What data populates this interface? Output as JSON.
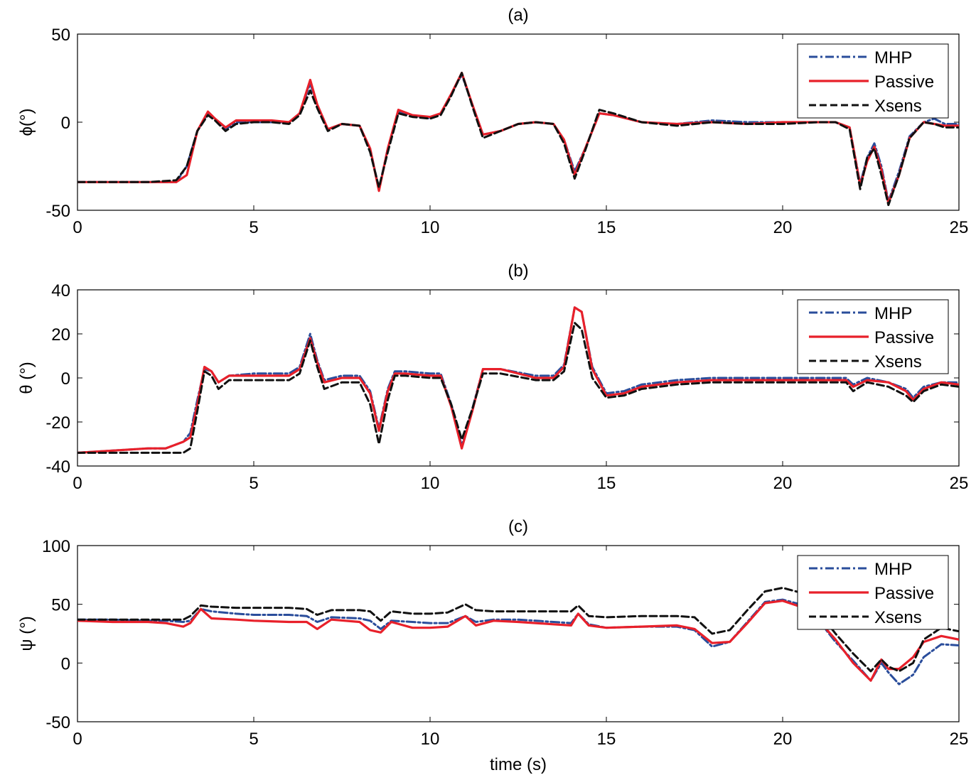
{
  "colors": {
    "MHP": "#2a4d9b",
    "Passive": "#e8202a",
    "Xsens": "#111111"
  },
  "chart_data": [
    {
      "type": "line",
      "title": "(a)",
      "xlabel": "",
      "ylabel": "ϕ(°)",
      "xlim": [
        0,
        25
      ],
      "ylim": [
        -50,
        50
      ],
      "xticks": [
        0,
        5,
        10,
        15,
        20,
        25
      ],
      "yticks": [
        -50,
        0,
        50
      ],
      "xtick_labels": [
        "0",
        "5",
        "10",
        "15",
        "20",
        "25"
      ],
      "ytick_labels": [
        "-50",
        "0",
        "50"
      ],
      "legend": [
        "MHP",
        "Passive",
        "Xsens"
      ],
      "legend_position": "top-right",
      "series": [
        {
          "name": "MHP",
          "x": [
            0,
            1,
            2,
            2.8,
            3.1,
            3.4,
            3.7,
            3.9,
            4.2,
            4.5,
            5,
            5.5,
            6,
            6.3,
            6.6,
            6.8,
            7.1,
            7.5,
            8,
            8.3,
            8.55,
            8.8,
            9.1,
            9.5,
            10,
            10.3,
            10.6,
            10.9,
            11.2,
            11.5,
            12,
            12.5,
            13,
            13.5,
            13.8,
            14.1,
            14.4,
            14.8,
            15.2,
            16,
            17,
            18,
            19,
            20,
            21,
            21.5,
            21.9,
            22.2,
            22.4,
            22.6,
            22.8,
            23,
            23.3,
            23.6,
            24,
            24.3,
            24.6,
            25
          ],
          "y": [
            -34,
            -34,
            -34,
            -34,
            -25,
            -5,
            5,
            2,
            -4,
            0,
            0,
            0,
            0,
            5,
            22,
            10,
            -4,
            -1,
            -2,
            -15,
            -38,
            -15,
            6,
            4,
            2,
            5,
            16,
            27,
            10,
            -7,
            -5,
            -1,
            0,
            -1,
            -10,
            -28,
            -15,
            5,
            4,
            0,
            -1,
            1,
            0,
            0,
            0,
            0,
            -3,
            -35,
            -20,
            -12,
            -25,
            -45,
            -28,
            -8,
            0,
            2,
            -1,
            -1
          ]
        },
        {
          "name": "Passive",
          "x": [
            0,
            1,
            2,
            2.8,
            3.1,
            3.4,
            3.7,
            3.9,
            4.2,
            4.5,
            5,
            5.5,
            6,
            6.3,
            6.6,
            6.8,
            7.1,
            7.5,
            8,
            8.3,
            8.55,
            8.8,
            9.1,
            9.5,
            10,
            10.3,
            10.6,
            10.9,
            11.2,
            11.5,
            12,
            12.5,
            13,
            13.5,
            13.8,
            14.1,
            14.4,
            14.8,
            15.2,
            16,
            17,
            18,
            19,
            20,
            21,
            21.5,
            21.9,
            22.2,
            22.4,
            22.6,
            22.8,
            23,
            23.3,
            23.6,
            24,
            24.3,
            24.6,
            25
          ],
          "y": [
            -34,
            -34,
            -34,
            -34,
            -30,
            -5,
            6,
            2,
            -3,
            1,
            1,
            1,
            0,
            5,
            24,
            10,
            -4,
            -1,
            -2,
            -15,
            -39,
            -15,
            7,
            4,
            3,
            5,
            16,
            28,
            10,
            -7,
            -5,
            -1,
            0,
            -1,
            -10,
            -30,
            -15,
            5,
            4,
            0,
            -1,
            0,
            -1,
            0,
            0,
            0,
            -3,
            -36,
            -22,
            -14,
            -27,
            -46,
            -30,
            -9,
            0,
            -1,
            -2,
            -2
          ]
        },
        {
          "name": "Xsens",
          "x": [
            0,
            1,
            2,
            2.8,
            3.1,
            3.4,
            3.7,
            3.9,
            4.2,
            4.5,
            5,
            5.5,
            6,
            6.3,
            6.6,
            6.8,
            7.1,
            7.5,
            8,
            8.3,
            8.55,
            8.8,
            9.1,
            9.5,
            10,
            10.3,
            10.6,
            10.9,
            11.2,
            11.5,
            12,
            12.5,
            13,
            13.5,
            13.8,
            14.1,
            14.4,
            14.8,
            15.2,
            16,
            17,
            18,
            19,
            20,
            21,
            21.5,
            21.9,
            22.2,
            22.4,
            22.6,
            22.8,
            23,
            23.3,
            23.6,
            24,
            24.3,
            24.6,
            25
          ],
          "y": [
            -34,
            -34,
            -34,
            -33,
            -25,
            -5,
            4,
            1,
            -5,
            -1,
            0,
            0,
            -1,
            4,
            18,
            8,
            -5,
            -1,
            -2,
            -17,
            -37,
            -17,
            5,
            3,
            2,
            4,
            15,
            28,
            9,
            -9,
            -5,
            -1,
            0,
            -1,
            -12,
            -32,
            -16,
            7,
            5,
            0,
            -2,
            0,
            -1,
            -1,
            0,
            0,
            -4,
            -38,
            -20,
            -15,
            -30,
            -47,
            -30,
            -9,
            0,
            -1,
            -3,
            -3
          ]
        }
      ]
    },
    {
      "type": "line",
      "title": "(b)",
      "xlabel": "",
      "ylabel": "θ (°)",
      "xlim": [
        0,
        25
      ],
      "ylim": [
        -40,
        40
      ],
      "xticks": [
        0,
        5,
        10,
        15,
        20,
        25
      ],
      "yticks": [
        -40,
        -20,
        0,
        20,
        40
      ],
      "xtick_labels": [
        "0",
        "5",
        "10",
        "15",
        "20",
        "25"
      ],
      "ytick_labels": [
        "-40",
        "-20",
        "0",
        "20",
        "40"
      ],
      "legend": [
        "MHP",
        "Passive",
        "Xsens"
      ],
      "legend_position": "top-right",
      "series": [
        {
          "name": "MHP",
          "x": [
            0,
            1,
            2,
            2.5,
            3,
            3.2,
            3.4,
            3.6,
            3.8,
            4,
            4.3,
            5,
            6,
            6.3,
            6.6,
            6.8,
            7,
            7.5,
            8,
            8.3,
            8.55,
            8.8,
            9,
            9.3,
            10,
            10.3,
            10.6,
            10.9,
            11.2,
            11.5,
            12,
            13,
            13.5,
            13.8,
            14.1,
            14.3,
            14.6,
            15,
            15.5,
            16,
            17,
            18,
            19,
            20,
            21,
            21.8,
            22,
            22.4,
            23,
            23.5,
            23.7,
            24,
            24.5,
            25
          ],
          "y": [
            -34,
            -33,
            -32,
            -32,
            -29,
            -25,
            -10,
            4,
            3,
            -2,
            1,
            2,
            2,
            5,
            20,
            8,
            -1,
            1,
            1,
            -6,
            -23,
            -5,
            3,
            3,
            2,
            2,
            -12,
            -31,
            -14,
            4,
            4,
            1,
            1,
            6,
            32,
            30,
            5,
            -7,
            -6,
            -3,
            -1,
            0,
            0,
            0,
            0,
            0,
            -3,
            0,
            -2,
            -5,
            -9,
            -4,
            -2,
            -2
          ]
        },
        {
          "name": "Passive",
          "x": [
            0,
            1,
            2,
            2.5,
            3,
            3.2,
            3.4,
            3.6,
            3.8,
            4,
            4.3,
            5,
            6,
            6.3,
            6.6,
            6.8,
            7,
            7.5,
            8,
            8.3,
            8.55,
            8.8,
            9,
            9.3,
            10,
            10.3,
            10.6,
            10.9,
            11.2,
            11.5,
            12,
            13,
            13.5,
            13.8,
            14.1,
            14.3,
            14.6,
            15,
            15.5,
            16,
            17,
            18,
            19,
            20,
            21,
            21.8,
            22,
            22.4,
            23,
            23.5,
            23.7,
            24,
            24.5,
            25
          ],
          "y": [
            -34,
            -33,
            -32,
            -32,
            -29,
            -27,
            -12,
            5,
            3,
            -2,
            1,
            1,
            1,
            4,
            18,
            7,
            -2,
            0,
            0,
            -7,
            -24,
            -6,
            2,
            2,
            1,
            1,
            -13,
            -32,
            -15,
            4,
            4,
            0,
            0,
            5,
            32,
            30,
            4,
            -8,
            -7,
            -4,
            -2,
            -1,
            -1,
            -1,
            -1,
            -1,
            -4,
            -1,
            -2,
            -6,
            -10,
            -5,
            -2,
            -3
          ]
        },
        {
          "name": "Xsens",
          "x": [
            0,
            1,
            2,
            2.5,
            3,
            3.2,
            3.4,
            3.6,
            3.8,
            4,
            4.3,
            5,
            6,
            6.3,
            6.6,
            6.8,
            7,
            7.5,
            8,
            8.3,
            8.55,
            8.8,
            9,
            9.3,
            10,
            10.3,
            10.6,
            10.9,
            11.2,
            11.5,
            12,
            13,
            13.5,
            13.8,
            14.1,
            14.3,
            14.6,
            15,
            15.5,
            16,
            17,
            18,
            19,
            20,
            21,
            21.8,
            22,
            22.4,
            23,
            23.5,
            23.7,
            24,
            24.5,
            25
          ],
          "y": [
            -34,
            -34,
            -34,
            -34,
            -34,
            -32,
            -15,
            3,
            1,
            -5,
            -1,
            -1,
            -1,
            2,
            17,
            5,
            -5,
            -2,
            -2,
            -12,
            -30,
            -10,
            1,
            1,
            0,
            0,
            -12,
            -28,
            -14,
            2,
            2,
            -1,
            -1,
            3,
            25,
            22,
            0,
            -9,
            -8,
            -5,
            -3,
            -2,
            -2,
            -2,
            -2,
            -2,
            -6,
            -2,
            -4,
            -8,
            -11,
            -6,
            -3,
            -4
          ]
        }
      ]
    },
    {
      "type": "line",
      "title": "(c)",
      "xlabel": "time (s)",
      "ylabel": "ψ (°)",
      "xlim": [
        0,
        25
      ],
      "ylim": [
        -50,
        100
      ],
      "xticks": [
        0,
        5,
        10,
        15,
        20,
        25
      ],
      "yticks": [
        -50,
        0,
        50,
        100
      ],
      "xtick_labels": [
        "0",
        "5",
        "10",
        "15",
        "20",
        "25"
      ],
      "ytick_labels": [
        "-50",
        "0",
        "50",
        "100"
      ],
      "legend": [
        "MHP",
        "Passive",
        "Xsens"
      ],
      "legend_position": "top-right",
      "series": [
        {
          "name": "MHP",
          "x": [
            0,
            1,
            2,
            2.5,
            3,
            3.2,
            3.5,
            3.8,
            4.5,
            5,
            6,
            6.5,
            6.8,
            7.2,
            8,
            8.3,
            8.6,
            8.9,
            9.5,
            10,
            10.5,
            11,
            11.3,
            11.8,
            12.5,
            13,
            13.5,
            14,
            14.2,
            14.5,
            15,
            16,
            17,
            17.5,
            18,
            18.5,
            19,
            19.5,
            20,
            20.5,
            21,
            21.5,
            22,
            22.5,
            22.8,
            23,
            23.3,
            23.7,
            24,
            24.5,
            25
          ],
          "y": [
            37,
            37,
            36,
            36,
            35,
            36,
            46,
            44,
            42,
            41,
            41,
            40,
            35,
            39,
            38,
            36,
            29,
            36,
            35,
            34,
            34,
            40,
            35,
            37,
            37,
            36,
            35,
            34,
            42,
            33,
            30,
            31,
            31,
            28,
            14,
            18,
            35,
            52,
            54,
            50,
            37,
            18,
            2,
            -15,
            0,
            -8,
            -18,
            -10,
            5,
            16,
            15
          ]
        },
        {
          "name": "Passive",
          "x": [
            0,
            1,
            2,
            2.5,
            3,
            3.2,
            3.5,
            3.8,
            4.5,
            5,
            6,
            6.5,
            6.8,
            7.2,
            8,
            8.3,
            8.6,
            8.9,
            9.5,
            10,
            10.5,
            11,
            11.3,
            11.8,
            12.5,
            13,
            13.5,
            14,
            14.2,
            14.5,
            15,
            16,
            17,
            17.5,
            18,
            18.5,
            19,
            19.5,
            20,
            20.5,
            21,
            21.5,
            22,
            22.5,
            22.8,
            23,
            23.3,
            23.7,
            24,
            24.5,
            25
          ],
          "y": [
            36,
            35,
            35,
            34,
            31,
            34,
            46,
            38,
            37,
            36,
            35,
            35,
            29,
            37,
            35,
            28,
            26,
            35,
            30,
            30,
            31,
            40,
            32,
            36,
            35,
            34,
            33,
            32,
            42,
            32,
            30,
            31,
            32,
            29,
            17,
            18,
            34,
            51,
            53,
            48,
            37,
            20,
            0,
            -15,
            3,
            -5,
            -5,
            5,
            18,
            23,
            20
          ]
        },
        {
          "name": "Xsens",
          "x": [
            0,
            1,
            2,
            2.5,
            3,
            3.2,
            3.5,
            3.8,
            4.5,
            5,
            6,
            6.5,
            6.8,
            7.2,
            8,
            8.3,
            8.6,
            8.9,
            9.5,
            10,
            10.5,
            11,
            11.3,
            11.8,
            12.5,
            13,
            13.5,
            14,
            14.2,
            14.5,
            15,
            16,
            17,
            17.5,
            18,
            18.5,
            19,
            19.5,
            20,
            20.5,
            21,
            21.5,
            22,
            22.5,
            22.8,
            23,
            23.3,
            23.7,
            24,
            24.5,
            25
          ],
          "y": [
            37,
            37,
            37,
            37,
            37,
            40,
            49,
            48,
            47,
            47,
            47,
            46,
            41,
            45,
            45,
            44,
            36,
            44,
            42,
            42,
            43,
            50,
            45,
            44,
            44,
            44,
            44,
            44,
            49,
            40,
            39,
            40,
            40,
            39,
            25,
            28,
            45,
            61,
            64,
            60,
            44,
            25,
            8,
            -7,
            3,
            -3,
            -7,
            0,
            20,
            30,
            27
          ]
        }
      ]
    }
  ]
}
